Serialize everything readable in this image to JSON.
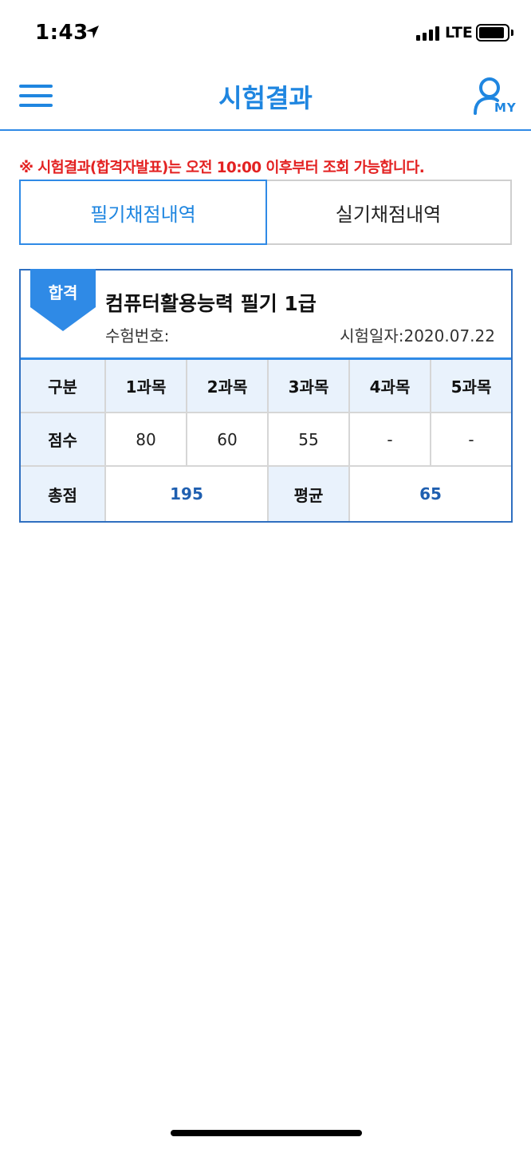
{
  "status_bar": {
    "time": "1:43",
    "network": "LTE"
  },
  "header": {
    "title": "시험결과",
    "my_label": "MY",
    "accent_color": "#1f86e0"
  },
  "notice": {
    "text": "※ 시험결과(합격자발표)는 오전 10:00 이후부터 조회 가능합니다.",
    "color": "#e32121"
  },
  "tabs": [
    {
      "label": "필기채점내역",
      "active": true
    },
    {
      "label": "실기채점내역",
      "active": false
    }
  ],
  "result": {
    "badge": "합격",
    "exam_name": "컴퓨터활용능력 필기 1급",
    "exam_number_label": "수험번호:",
    "exam_date_text": "시험일자:2020.07.22",
    "table": {
      "header_label": "구분",
      "subjects": [
        "1과목",
        "2과목",
        "3과목",
        "4과목",
        "5과목"
      ],
      "score_label": "점수",
      "scores": [
        "80",
        "60",
        "55",
        "-",
        "-"
      ],
      "total_label": "총점",
      "total_value": "195",
      "average_label": "평균",
      "average_value": "65"
    }
  }
}
